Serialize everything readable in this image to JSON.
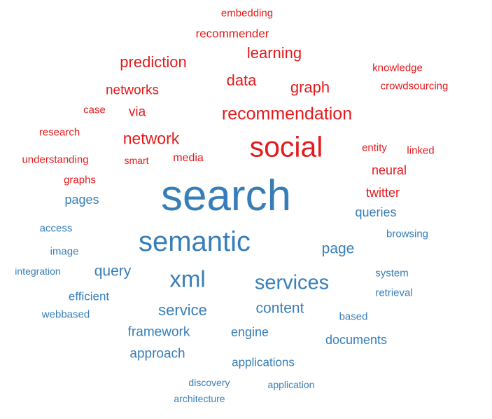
{
  "colors": {
    "red": "#e41a1c",
    "blue": "#377eb8"
  },
  "words": [
    {
      "text": "embedding",
      "color": "red"
    },
    {
      "text": "recommender",
      "color": "red"
    },
    {
      "text": "learning",
      "color": "red"
    },
    {
      "text": "prediction",
      "color": "red"
    },
    {
      "text": "knowledge",
      "color": "red"
    },
    {
      "text": "data",
      "color": "red"
    },
    {
      "text": "graph",
      "color": "red"
    },
    {
      "text": "networks",
      "color": "red"
    },
    {
      "text": "crowdsourcing",
      "color": "red"
    },
    {
      "text": "case",
      "color": "red"
    },
    {
      "text": "via",
      "color": "red"
    },
    {
      "text": "recommendation",
      "color": "red"
    },
    {
      "text": "research",
      "color": "red"
    },
    {
      "text": "network",
      "color": "red"
    },
    {
      "text": "social",
      "color": "red"
    },
    {
      "text": "entity",
      "color": "red"
    },
    {
      "text": "linked",
      "color": "red"
    },
    {
      "text": "understanding",
      "color": "red"
    },
    {
      "text": "smart",
      "color": "red"
    },
    {
      "text": "media",
      "color": "red"
    },
    {
      "text": "neural",
      "color": "red"
    },
    {
      "text": "graphs",
      "color": "red"
    },
    {
      "text": "twitter",
      "color": "red"
    },
    {
      "text": "search",
      "color": "blue"
    },
    {
      "text": "pages",
      "color": "blue"
    },
    {
      "text": "queries",
      "color": "blue"
    },
    {
      "text": "access",
      "color": "blue"
    },
    {
      "text": "browsing",
      "color": "blue"
    },
    {
      "text": "semantic",
      "color": "blue"
    },
    {
      "text": "page",
      "color": "blue"
    },
    {
      "text": "image",
      "color": "blue"
    },
    {
      "text": "integration",
      "color": "blue"
    },
    {
      "text": "query",
      "color": "blue"
    },
    {
      "text": "xml",
      "color": "blue"
    },
    {
      "text": "system",
      "color": "blue"
    },
    {
      "text": "services",
      "color": "blue"
    },
    {
      "text": "efficient",
      "color": "blue"
    },
    {
      "text": "retrieval",
      "color": "blue"
    },
    {
      "text": "webbased",
      "color": "blue"
    },
    {
      "text": "service",
      "color": "blue"
    },
    {
      "text": "content",
      "color": "blue"
    },
    {
      "text": "based",
      "color": "blue"
    },
    {
      "text": "framework",
      "color": "blue"
    },
    {
      "text": "engine",
      "color": "blue"
    },
    {
      "text": "documents",
      "color": "blue"
    },
    {
      "text": "approach",
      "color": "blue"
    },
    {
      "text": "applications",
      "color": "blue"
    },
    {
      "text": "discovery",
      "color": "blue"
    },
    {
      "text": "application",
      "color": "blue"
    },
    {
      "text": "architecture",
      "color": "blue"
    }
  ]
}
